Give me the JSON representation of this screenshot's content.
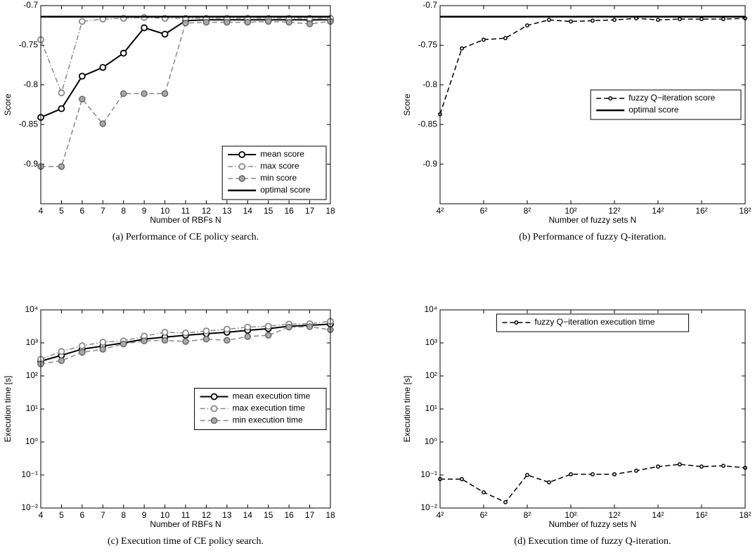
{
  "chart_data": [
    {
      "type": "line",
      "caption": "(a) Performance of CE policy search.",
      "xlabel": "Number of RBFs N",
      "ylabel": "Score",
      "x": [
        4,
        5,
        6,
        7,
        8,
        9,
        10,
        11,
        12,
        13,
        14,
        15,
        16,
        17,
        18
      ],
      "xlim": [
        4,
        18
      ],
      "xticks": [
        4,
        5,
        6,
        7,
        8,
        9,
        10,
        11,
        12,
        13,
        14,
        15,
        16,
        17,
        18
      ],
      "ylim": [
        -0.95,
        -0.7
      ],
      "yticks": [
        -0.9,
        -0.85,
        -0.8,
        -0.75,
        -0.7
      ],
      "legend": "lower right",
      "series": [
        {
          "name": "mean score",
          "color": "#000000",
          "line_style": "solid",
          "marker": "open",
          "values": [
            -0.841,
            -0.83,
            -0.789,
            -0.778,
            -0.76,
            -0.728,
            -0.736,
            -0.719,
            -0.718,
            -0.718,
            -0.718,
            -0.718,
            -0.718,
            -0.718,
            -0.718
          ]
        },
        {
          "name": "max score",
          "color": "#888888",
          "line_style": "dashdot",
          "marker": "open",
          "values": [
            -0.743,
            -0.81,
            -0.72,
            -0.717,
            -0.716,
            -0.715,
            -0.716,
            -0.716,
            -0.716,
            -0.716,
            -0.716,
            -0.716,
            -0.716,
            -0.716,
            -0.716
          ]
        },
        {
          "name": "min score",
          "color": "#888888",
          "line_style": "dashed",
          "marker": "filled",
          "values": [
            -0.903,
            -0.903,
            -0.818,
            -0.849,
            -0.811,
            -0.811,
            -0.811,
            -0.722,
            -0.721,
            -0.721,
            -0.721,
            -0.72,
            -0.721,
            -0.723,
            -0.72
          ]
        },
        {
          "name": "optimal score",
          "color": "#000000",
          "line_style": "solid",
          "value": -0.714
        }
      ]
    },
    {
      "type": "line",
      "caption": "(b) Performance of fuzzy Q-iteration.",
      "xlabel": "Number of fuzzy sets N",
      "ylabel": "Score",
      "xscale": "sqrt",
      "x": [
        16,
        25,
        36,
        49,
        64,
        81,
        100,
        121,
        144,
        169,
        196,
        225,
        256,
        289,
        324
      ],
      "xlim": [
        16,
        324
      ],
      "xticks": [
        {
          "value": 16,
          "label": "4²"
        },
        {
          "value": 36,
          "label": "6²"
        },
        {
          "value": 64,
          "label": "8²"
        },
        {
          "value": 100,
          "label": "10²"
        },
        {
          "value": 144,
          "label": "12²"
        },
        {
          "value": 196,
          "label": "14²"
        },
        {
          "value": 256,
          "label": "16²"
        },
        {
          "value": 324,
          "label": "18²"
        }
      ],
      "ylim": [
        -0.95,
        -0.7
      ],
      "yticks": [
        -0.9,
        -0.85,
        -0.8,
        -0.75,
        -0.7
      ],
      "legend": "center right",
      "series": [
        {
          "name": "fuzzy Q−iteration score",
          "color": "#000000",
          "line_style": "dashed",
          "marker": "dot",
          "values": [
            -0.837,
            -0.754,
            -0.743,
            -0.741,
            -0.725,
            -0.718,
            -0.72,
            -0.719,
            -0.718,
            -0.716,
            -0.718,
            -0.717,
            -0.717,
            -0.717,
            -0.716
          ]
        },
        {
          "name": "optimal score",
          "color": "#000000",
          "line_style": "solid",
          "value": -0.714
        }
      ]
    },
    {
      "type": "line",
      "caption": "(c) Execution time of CE policy search.",
      "xlabel": "Number of RBFs N",
      "ylabel": "Execution time [s]",
      "yscale": "log",
      "x": [
        4,
        5,
        6,
        7,
        8,
        9,
        10,
        11,
        12,
        13,
        14,
        15,
        16,
        17,
        18
      ],
      "xlim": [
        4,
        18
      ],
      "xticks": [
        4,
        5,
        6,
        7,
        8,
        9,
        10,
        11,
        12,
        13,
        14,
        15,
        16,
        17,
        18
      ],
      "ylim": [
        0.01,
        10000
      ],
      "yticks": [
        {
          "value": 0.01,
          "label": "10⁻²"
        },
        {
          "value": 0.1,
          "label": "10⁻¹"
        },
        {
          "value": 1,
          "label": "10⁰"
        },
        {
          "value": 10,
          "label": "10¹"
        },
        {
          "value": 100,
          "label": "10²"
        },
        {
          "value": 1000,
          "label": "10³"
        },
        {
          "value": 10000,
          "label": "10⁴"
        }
      ],
      "legend": "center right",
      "series": [
        {
          "name": "mean execution time",
          "color": "#000000",
          "line_style": "solid",
          "marker": "open",
          "values": [
            280,
            420,
            650,
            800,
            1000,
            1300,
            1500,
            1700,
            1900,
            2100,
            2400,
            2700,
            3200,
            3400,
            3700
          ]
        },
        {
          "name": "max execution time",
          "color": "#888888",
          "line_style": "dashdot",
          "marker": "open",
          "values": [
            320,
            550,
            820,
            1050,
            1150,
            1600,
            2100,
            2000,
            2300,
            2600,
            3000,
            3200,
            3700,
            3800,
            4500
          ]
        },
        {
          "name": "min execution time",
          "color": "#888888",
          "line_style": "dashed",
          "marker": "filled",
          "values": [
            230,
            290,
            520,
            640,
            930,
            1150,
            1200,
            1100,
            1300,
            1200,
            1550,
            1700,
            3000,
            3100,
            2500
          ]
        }
      ]
    },
    {
      "type": "line",
      "caption": "(d) Execution time of fuzzy Q-iteration.",
      "xlabel": "Number of fuzzy sets N",
      "ylabel": "Execution time [s]",
      "xscale": "sqrt",
      "yscale": "log",
      "x": [
        16,
        25,
        36,
        49,
        64,
        81,
        100,
        121,
        144,
        169,
        196,
        225,
        256,
        289,
        324
      ],
      "xlim": [
        16,
        324
      ],
      "xticks": [
        {
          "value": 16,
          "label": "4²"
        },
        {
          "value": 36,
          "label": "6²"
        },
        {
          "value": 64,
          "label": "8²"
        },
        {
          "value": 100,
          "label": "10²"
        },
        {
          "value": 144,
          "label": "12²"
        },
        {
          "value": 196,
          "label": "14²"
        },
        {
          "value": 256,
          "label": "16²"
        },
        {
          "value": 324,
          "label": "18²"
        }
      ],
      "ylim": [
        0.01,
        10000
      ],
      "yticks": [
        {
          "value": 0.01,
          "label": "10⁻²"
        },
        {
          "value": 0.1,
          "label": "10⁻¹"
        },
        {
          "value": 1,
          "label": "10⁰"
        },
        {
          "value": 10,
          "label": "10¹"
        },
        {
          "value": 100,
          "label": "10²"
        },
        {
          "value": 1000,
          "label": "10³"
        },
        {
          "value": 10000,
          "label": "10⁴"
        }
      ],
      "legend": "upper center",
      "series": [
        {
          "name": "fuzzy Q−iteration execution time",
          "color": "#000000",
          "line_style": "dashed",
          "marker": "dot",
          "values": [
            0.075,
            0.075,
            0.03,
            0.015,
            0.1,
            0.06,
            0.105,
            0.105,
            0.105,
            0.135,
            0.18,
            0.21,
            0.18,
            0.19,
            0.165
          ]
        }
      ]
    }
  ]
}
